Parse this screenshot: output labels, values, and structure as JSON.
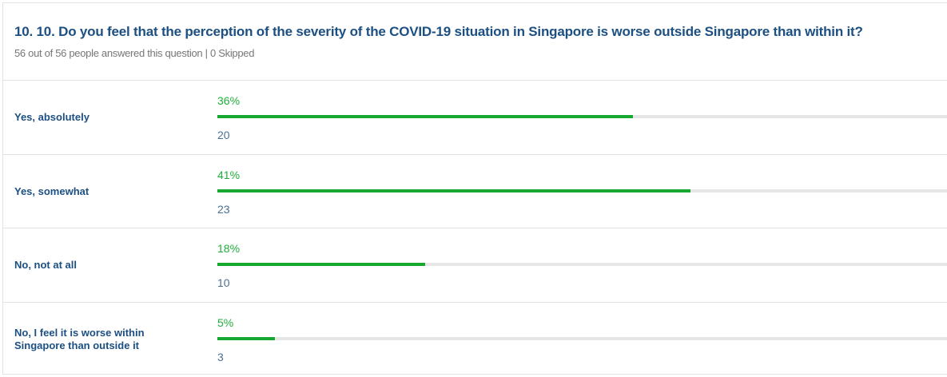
{
  "question": {
    "title": "10. 10. Do you feel that the perception of the severity of the COVID-19 situation in Singapore is worse outside Singapore than within it?",
    "subtitle": "56 out of 56 people answered this question | 0 Skipped"
  },
  "rows": [
    {
      "label": "Yes, absolutely",
      "percent": 36,
      "percent_label": "36%",
      "count": 20
    },
    {
      "label": "Yes, somewhat",
      "percent": 41,
      "percent_label": "41%",
      "count": 23
    },
    {
      "label": "No, not at all",
      "percent": 18,
      "percent_label": "18%",
      "count": 10
    },
    {
      "label": "No, I feel it is worse within Singapore than outside it",
      "percent": 5,
      "percent_label": "5%",
      "count": 3
    }
  ]
}
